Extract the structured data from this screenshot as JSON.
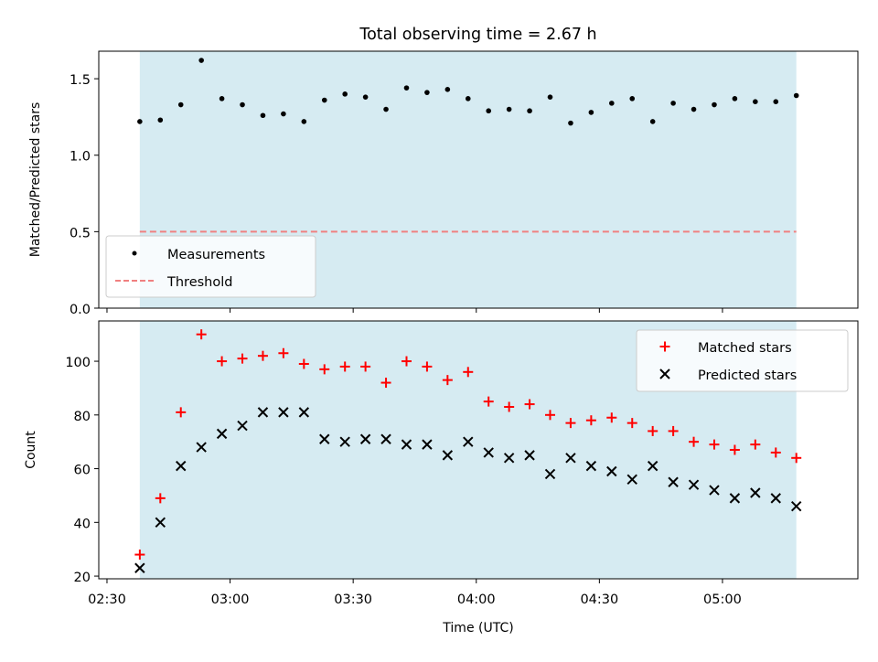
{
  "chart_data": [
    {
      "type": "scatter",
      "title": "Total observing time = 2.67 h",
      "xlabel": "",
      "ylabel": "Matched/Predicted stars",
      "ylim": [
        0,
        1.68
      ],
      "yticks": [
        0.0,
        0.5,
        1.0,
        1.5
      ],
      "ytick_labels": [
        "0.0",
        "0.5",
        "1.0",
        "1.5"
      ],
      "shaded_band": {
        "from": "02:38",
        "to": "05:18",
        "color": "#add8e6"
      },
      "legend": {
        "placement": "lower-left",
        "entries": [
          {
            "label": "Measurements",
            "marker": "dot",
            "color": "#000000"
          },
          {
            "label": "Threshold",
            "marker": "dashed-line",
            "color": "#f08080"
          }
        ]
      },
      "series": [
        {
          "name": "Measurements",
          "color": "#000000",
          "x": [
            "02:38",
            "02:43",
            "02:48",
            "02:53",
            "02:58",
            "03:03",
            "03:08",
            "03:13",
            "03:18",
            "03:23",
            "03:28",
            "03:33",
            "03:38",
            "03:43",
            "03:48",
            "03:53",
            "03:58",
            "04:03",
            "04:08",
            "04:13",
            "04:18",
            "04:23",
            "04:28",
            "04:33",
            "04:38",
            "04:43",
            "04:48",
            "04:53",
            "04:58",
            "05:03",
            "05:08",
            "05:13",
            "05:18"
          ],
          "y": [
            1.22,
            1.23,
            1.33,
            1.62,
            1.37,
            1.33,
            1.26,
            1.27,
            1.22,
            1.36,
            1.4,
            1.38,
            1.3,
            1.44,
            1.41,
            1.43,
            1.37,
            1.29,
            1.3,
            1.29,
            1.38,
            1.21,
            1.28,
            1.34,
            1.37,
            1.22,
            1.34,
            1.3,
            1.33,
            1.37,
            1.35,
            1.35,
            1.39
          ]
        },
        {
          "name": "Threshold",
          "color": "#f08080",
          "x": [
            "02:38",
            "05:18"
          ],
          "y": [
            0.5,
            0.5
          ]
        }
      ]
    },
    {
      "type": "scatter",
      "title": "",
      "xlabel": "Time (UTC)",
      "ylabel": "Count",
      "ylim": [
        19,
        115
      ],
      "yticks": [
        20,
        40,
        60,
        80,
        100
      ],
      "ytick_labels": [
        "20",
        "40",
        "60",
        "80",
        "100"
      ],
      "x_axis": {
        "type": "time",
        "range": [
          "02:28",
          "05:33"
        ],
        "ticks": [
          "02:30",
          "03:00",
          "03:30",
          "04:00",
          "04:30",
          "05:00"
        ],
        "tick_labels": [
          "02:30",
          "03:00",
          "03:30",
          "04:00",
          "04:30",
          "05:00"
        ]
      },
      "shaded_band": {
        "from": "02:38",
        "to": "05:18",
        "color": "#add8e6"
      },
      "legend": {
        "placement": "upper-right",
        "entries": [
          {
            "label": "Matched stars",
            "marker": "plus",
            "color": "#ff0000"
          },
          {
            "label": "Predicted stars",
            "marker": "cross",
            "color": "#000000"
          }
        ]
      },
      "series": [
        {
          "name": "Matched stars",
          "color": "#ff0000",
          "marker": "plus",
          "x": [
            "02:38",
            "02:43",
            "02:48",
            "02:53",
            "02:58",
            "03:03",
            "03:08",
            "03:13",
            "03:18",
            "03:23",
            "03:28",
            "03:33",
            "03:38",
            "03:43",
            "03:48",
            "03:53",
            "03:58",
            "04:03",
            "04:08",
            "04:13",
            "04:18",
            "04:23",
            "04:28",
            "04:33",
            "04:38",
            "04:43",
            "04:48",
            "04:53",
            "04:58",
            "05:03",
            "05:08",
            "05:13",
            "05:18"
          ],
          "y": [
            28,
            49,
            81,
            110,
            100,
            101,
            102,
            103,
            99,
            97,
            98,
            98,
            92,
            100,
            98,
            93,
            96,
            85,
            83,
            84,
            80,
            77,
            78,
            79,
            77,
            74,
            74,
            70,
            69,
            67,
            69,
            66,
            64
          ]
        },
        {
          "name": "Predicted stars",
          "color": "#000000",
          "marker": "cross",
          "x": [
            "02:38",
            "02:43",
            "02:48",
            "02:53",
            "02:58",
            "03:03",
            "03:08",
            "03:13",
            "03:18",
            "03:23",
            "03:28",
            "03:33",
            "03:38",
            "03:43",
            "03:48",
            "03:53",
            "03:58",
            "04:03",
            "04:08",
            "04:13",
            "04:18",
            "04:23",
            "04:28",
            "04:33",
            "04:38",
            "04:43",
            "04:48",
            "04:53",
            "04:58",
            "05:03",
            "05:08",
            "05:13",
            "05:18"
          ],
          "y": [
            23,
            40,
            61,
            68,
            73,
            76,
            81,
            81,
            81,
            71,
            70,
            71,
            71,
            69,
            69,
            65,
            70,
            66,
            64,
            65,
            58,
            64,
            61,
            59,
            56,
            61,
            55,
            54,
            52,
            49,
            51,
            49,
            46
          ]
        }
      ]
    }
  ]
}
